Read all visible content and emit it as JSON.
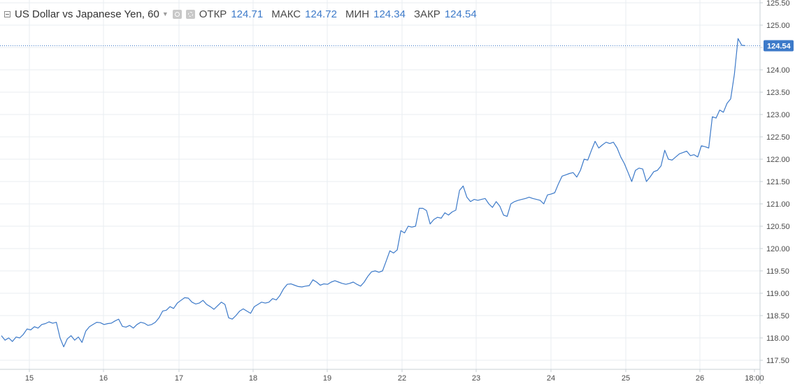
{
  "legend": {
    "title": "US Dollar vs Japanese Yen, 60",
    "open_label": "ОТКР",
    "open_value": "124.71",
    "high_label": "МАКС",
    "high_value": "124.72",
    "low_label": "МИН",
    "low_value": "124.34",
    "close_label": "ЗАКР",
    "close_value": "124.54"
  },
  "colors": {
    "line": "#3d7ac9",
    "grid": "#e9eef2",
    "axis_text": "#4a4a4a",
    "price_badge": "#3d7ac9"
  },
  "icons": [
    "collapse-icon",
    "dropdown-arrow-icon",
    "eye-icon",
    "gear-icon"
  ],
  "chart_data": {
    "type": "line",
    "title": "US Dollar vs Japanese Yen, 60",
    "xlabel": "",
    "ylabel": "",
    "x_tick_labels": [
      "15",
      "16",
      "17",
      "18",
      "19",
      "22",
      "23",
      "24",
      "25",
      "26",
      "18:00"
    ],
    "y_tick_labels": [
      "117.50",
      "118.00",
      "118.50",
      "119.00",
      "119.50",
      "120.00",
      "120.50",
      "121.00",
      "121.50",
      "122.00",
      "122.50",
      "123.00",
      "123.50",
      "124.00",
      "124.50",
      "125.00",
      "125.50"
    ],
    "ylim": [
      117.5,
      125.5
    ],
    "grid": true,
    "axis_position": "right",
    "last_price": 124.54,
    "last_price_label": "124.54",
    "series": [
      {
        "values": [
          118.05,
          117.95,
          118.0,
          117.92,
          118.02,
          118.0,
          118.08,
          118.2,
          118.18,
          118.25,
          118.22,
          118.3,
          118.32,
          118.36,
          118.33,
          118.35,
          118.0,
          117.8,
          117.98,
          118.05,
          117.95,
          118.02,
          117.9,
          118.15,
          118.25,
          118.3,
          118.35,
          118.34,
          118.3,
          118.32,
          118.33,
          118.38,
          118.42,
          118.26,
          118.24,
          118.28,
          118.22,
          118.3,
          118.35,
          118.33,
          118.28,
          118.3,
          118.35,
          118.45,
          118.6,
          118.62,
          118.7,
          118.66,
          118.78,
          118.84,
          118.9,
          118.89,
          118.8,
          118.76,
          118.78,
          118.84,
          118.75,
          118.7,
          118.64,
          118.72,
          118.8,
          118.75,
          118.45,
          118.42,
          118.5,
          118.6,
          118.65,
          118.6,
          118.55,
          118.7,
          118.75,
          118.8,
          118.78,
          118.8,
          118.88,
          118.85,
          118.95,
          119.1,
          119.2,
          119.21,
          119.18,
          119.15,
          119.14,
          119.16,
          119.17,
          119.3,
          119.25,
          119.18,
          119.21,
          119.2,
          119.25,
          119.28,
          119.25,
          119.22,
          119.2,
          119.22,
          119.25,
          119.2,
          119.16,
          119.25,
          119.38,
          119.48,
          119.5,
          119.47,
          119.5,
          119.72,
          119.95,
          119.9,
          119.97,
          120.4,
          120.35,
          120.5,
          120.48,
          120.5,
          120.9,
          120.9,
          120.85,
          120.55,
          120.65,
          120.7,
          120.68,
          120.8,
          120.75,
          120.82,
          120.86,
          121.3,
          121.4,
          121.15,
          121.05,
          121.1,
          121.08,
          121.1,
          121.12,
          121.0,
          120.92,
          121.05,
          120.95,
          120.75,
          120.72,
          121.0,
          121.05,
          121.08,
          121.1,
          121.12,
          121.15,
          121.12,
          121.1,
          121.08,
          121.0,
          121.2,
          121.22,
          121.25,
          121.45,
          121.62,
          121.65,
          121.68,
          121.7,
          121.6,
          121.75,
          122.0,
          121.98,
          122.2,
          122.4,
          122.25,
          122.32,
          122.38,
          122.35,
          122.38,
          122.25,
          122.05,
          121.9,
          121.7,
          121.5,
          121.75,
          121.8,
          121.78,
          121.5,
          121.6,
          121.72,
          121.75,
          121.85,
          122.2,
          122.0,
          121.98,
          122.05,
          122.12,
          122.15,
          122.18,
          122.08,
          122.1,
          122.05,
          122.3,
          122.28,
          122.25,
          122.95,
          122.92,
          123.1,
          123.05,
          123.25,
          123.35,
          123.9,
          124.7,
          124.55,
          124.54
        ]
      }
    ]
  }
}
